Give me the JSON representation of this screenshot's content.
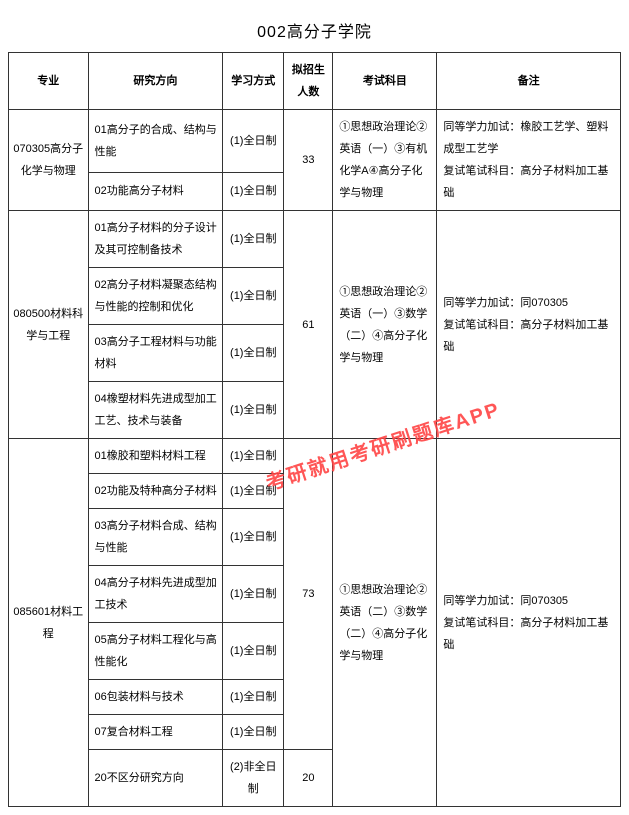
{
  "title": "002高分子学院",
  "headers": {
    "major": "专业",
    "direction": "研究方向",
    "mode": "学习方式",
    "count": "拟招生人数",
    "subjects": "考试科目",
    "remark": "备注"
  },
  "watermark": "考研就用考研刷题库APP",
  "majors": [
    {
      "name": "070305高分子化学与物理",
      "count": "33",
      "subjects": "①思想政治理论②英语（一）③有机化学A④高分子化学与物理",
      "remark": "同等学力加试：橡胶工艺学、塑料成型工艺学\n复试笔试科目：高分子材料加工基础",
      "dirs": [
        {
          "name": "01高分子的合成、结构与性能",
          "mode": "(1)全日制"
        },
        {
          "name": "02功能高分子材料",
          "mode": "(1)全日制"
        }
      ]
    },
    {
      "name": "080500材料科学与工程",
      "count": "61",
      "subjects": "①思想政治理论②英语（一）③数学（二）④高分子化学与物理",
      "remark": "同等学力加试：同070305\n复试笔试科目：高分子材料加工基础",
      "dirs": [
        {
          "name": "01高分子材料的分子设计及其可控制备技术",
          "mode": "(1)全日制"
        },
        {
          "name": "02高分子材料凝聚态结构与性能的控制和优化",
          "mode": "(1)全日制"
        },
        {
          "name": "03高分子工程材料与功能材料",
          "mode": "(1)全日制"
        },
        {
          "name": "04橡塑材料先进成型加工工艺、技术与装备",
          "mode": "(1)全日制"
        }
      ]
    },
    {
      "name": "085601材料工程",
      "count": "73",
      "subjects": "①思想政治理论②英语（二）③数学（二）④高分子化学与物理",
      "remark": "同等学力加试：同070305\n复试笔试科目：高分子材料加工基础",
      "dirs": [
        {
          "name": "01橡胶和塑料材料工程",
          "mode": "(1)全日制"
        },
        {
          "name": "02功能及特种高分子材料",
          "mode": "(1)全日制"
        },
        {
          "name": "03高分子材料合成、结构与性能",
          "mode": "(1)全日制"
        },
        {
          "name": "04高分子材料先进成型加工技术",
          "mode": "(1)全日制"
        },
        {
          "name": "05高分子材料工程化与高性能化",
          "mode": "(1)全日制"
        },
        {
          "name": "06包装材料与技术",
          "mode": "(1)全日制"
        },
        {
          "name": "07复合材料工程",
          "mode": "(1)全日制"
        }
      ],
      "extra": {
        "name": "20不区分研究方向",
        "mode": "(2)非全日制",
        "count": "20"
      }
    }
  ]
}
